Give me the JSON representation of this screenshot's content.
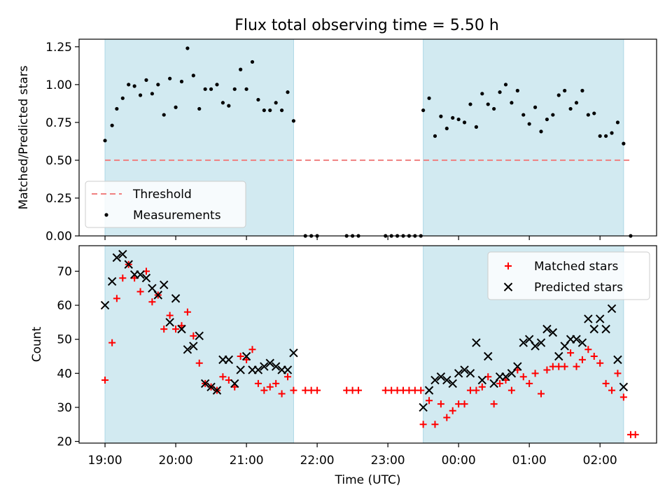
{
  "title": "Flux total observing time = 5.50 h",
  "xlabel": "Time (UTC)",
  "colors": {
    "shade": "#add8e6",
    "threshold": "#f08080",
    "measurement": "#000000",
    "matched": "#ff0000",
    "predicted": "#000000"
  },
  "chart_data": [
    {
      "type": "scatter",
      "panel": "top",
      "title": "Flux total observing time = 5.50 h",
      "xlabel": "",
      "ylabel": "Matched/Predicted stars",
      "x_axis": {
        "min": "18:38",
        "max": "02:48",
        "ticks": [
          "19:00",
          "20:00",
          "21:00",
          "22:00",
          "23:00",
          "00:00",
          "01:00",
          "02:00"
        ]
      },
      "ylim": [
        0,
        1.3
      ],
      "yticks": [
        "0.00",
        "0.25",
        "0.50",
        "0.75",
        "1.00",
        "1.25"
      ],
      "observing_windows": [
        [
          "19:00",
          "21:40"
        ],
        [
          "23:30",
          "02:20"
        ]
      ],
      "threshold": {
        "name": "Threshold",
        "value": 0.5,
        "x_range": [
          "19:00",
          "02:26"
        ],
        "style": "dashed"
      },
      "series": [
        {
          "name": "Measurements",
          "marker": "dot",
          "points": [
            [
              "19:00",
              0.63
            ],
            [
              "19:06",
              0.73
            ],
            [
              "19:10",
              0.84
            ],
            [
              "19:15",
              0.91
            ],
            [
              "19:20",
              1.0
            ],
            [
              "19:25",
              0.99
            ],
            [
              "19:30",
              0.93
            ],
            [
              "19:35",
              1.03
            ],
            [
              "19:40",
              0.94
            ],
            [
              "19:45",
              1.0
            ],
            [
              "19:50",
              0.8
            ],
            [
              "19:55",
              1.04
            ],
            [
              "20:00",
              0.85
            ],
            [
              "20:05",
              1.02
            ],
            [
              "20:10",
              1.24
            ],
            [
              "20:15",
              1.06
            ],
            [
              "20:20",
              0.84
            ],
            [
              "20:25",
              0.97
            ],
            [
              "20:30",
              0.97
            ],
            [
              "20:35",
              1.0
            ],
            [
              "20:40",
              0.88
            ],
            [
              "20:45",
              0.86
            ],
            [
              "20:50",
              0.97
            ],
            [
              "20:55",
              1.1
            ],
            [
              "21:00",
              0.97
            ],
            [
              "21:05",
              1.15
            ],
            [
              "21:10",
              0.9
            ],
            [
              "21:15",
              0.83
            ],
            [
              "21:20",
              0.83
            ],
            [
              "21:25",
              0.88
            ],
            [
              "21:30",
              0.83
            ],
            [
              "21:35",
              0.95
            ],
            [
              "21:40",
              0.76
            ],
            [
              "21:50",
              0.0
            ],
            [
              "21:55",
              0.0
            ],
            [
              "22:00",
              0.0
            ],
            [
              "22:25",
              0.0
            ],
            [
              "22:30",
              0.0
            ],
            [
              "22:35",
              0.0
            ],
            [
              "22:58",
              0.0
            ],
            [
              "23:03",
              0.0
            ],
            [
              "23:08",
              0.0
            ],
            [
              "23:13",
              0.0
            ],
            [
              "23:18",
              0.0
            ],
            [
              "23:23",
              0.0
            ],
            [
              "23:28",
              0.0
            ],
            [
              "23:30",
              0.83
            ],
            [
              "23:35",
              0.91
            ],
            [
              "23:40",
              0.66
            ],
            [
              "23:45",
              0.79
            ],
            [
              "23:50",
              0.71
            ],
            [
              "23:55",
              0.78
            ],
            [
              "00:00",
              0.77
            ],
            [
              "00:05",
              0.75
            ],
            [
              "00:10",
              0.87
            ],
            [
              "00:15",
              0.72
            ],
            [
              "00:20",
              0.94
            ],
            [
              "00:25",
              0.87
            ],
            [
              "00:30",
              0.84
            ],
            [
              "00:35",
              0.95
            ],
            [
              "00:40",
              1.0
            ],
            [
              "00:45",
              0.88
            ],
            [
              "00:50",
              0.96
            ],
            [
              "00:55",
              0.8
            ],
            [
              "01:00",
              0.74
            ],
            [
              "01:05",
              0.85
            ],
            [
              "01:10",
              0.69
            ],
            [
              "01:15",
              0.77
            ],
            [
              "01:20",
              0.8
            ],
            [
              "01:25",
              0.93
            ],
            [
              "01:30",
              0.96
            ],
            [
              "01:35",
              0.84
            ],
            [
              "01:40",
              0.88
            ],
            [
              "01:45",
              0.96
            ],
            [
              "01:50",
              0.8
            ],
            [
              "01:55",
              0.81
            ],
            [
              "02:00",
              0.66
            ],
            [
              "02:05",
              0.66
            ],
            [
              "02:10",
              0.68
            ],
            [
              "02:15",
              0.75
            ],
            [
              "02:20",
              0.61
            ],
            [
              "02:26",
              0.0
            ]
          ]
        }
      ],
      "legend": {
        "position": "bottom-left",
        "entries": [
          "Threshold",
          "Measurements"
        ]
      }
    },
    {
      "type": "scatter",
      "panel": "bottom",
      "xlabel": "Time (UTC)",
      "ylabel": "Count",
      "x_axis": {
        "min": "18:38",
        "max": "02:48",
        "ticks": [
          "19:00",
          "20:00",
          "21:00",
          "22:00",
          "23:00",
          "00:00",
          "01:00",
          "02:00"
        ]
      },
      "ylim": [
        19.5,
        77.5
      ],
      "yticks": [
        "20",
        "30",
        "40",
        "50",
        "60",
        "70"
      ],
      "observing_windows": [
        [
          "19:00",
          "21:40"
        ],
        [
          "23:30",
          "02:20"
        ]
      ],
      "series": [
        {
          "name": "Matched stars",
          "marker": "plus",
          "points": [
            [
              "19:00",
              38
            ],
            [
              "19:06",
              49
            ],
            [
              "19:10",
              62
            ],
            [
              "19:15",
              68
            ],
            [
              "19:20",
              72
            ],
            [
              "19:25",
              68
            ],
            [
              "19:30",
              64
            ],
            [
              "19:35",
              70
            ],
            [
              "19:40",
              61
            ],
            [
              "19:45",
              63
            ],
            [
              "19:50",
              53
            ],
            [
              "19:55",
              57
            ],
            [
              "20:00",
              53
            ],
            [
              "20:05",
              54
            ],
            [
              "20:10",
              58
            ],
            [
              "20:15",
              51
            ],
            [
              "20:20",
              43
            ],
            [
              "20:25",
              37
            ],
            [
              "20:30",
              36
            ],
            [
              "20:35",
              35
            ],
            [
              "20:40",
              39
            ],
            [
              "20:45",
              38
            ],
            [
              "20:50",
              36
            ],
            [
              "20:55",
              45
            ],
            [
              "21:00",
              44
            ],
            [
              "21:05",
              47
            ],
            [
              "21:10",
              37
            ],
            [
              "21:15",
              35
            ],
            [
              "21:20",
              36
            ],
            [
              "21:25",
              37
            ],
            [
              "21:30",
              34
            ],
            [
              "21:35",
              39
            ],
            [
              "21:40",
              35
            ],
            [
              "21:50",
              35
            ],
            [
              "21:55",
              35
            ],
            [
              "22:00",
              35
            ],
            [
              "22:25",
              35
            ],
            [
              "22:30",
              35
            ],
            [
              "22:35",
              35
            ],
            [
              "22:58",
              35
            ],
            [
              "23:03",
              35
            ],
            [
              "23:08",
              35
            ],
            [
              "23:13",
              35
            ],
            [
              "23:18",
              35
            ],
            [
              "23:23",
              35
            ],
            [
              "23:28",
              35
            ],
            [
              "23:30",
              25
            ],
            [
              "23:35",
              32
            ],
            [
              "23:40",
              25
            ],
            [
              "23:45",
              31
            ],
            [
              "23:50",
              27
            ],
            [
              "23:55",
              29
            ],
            [
              "00:00",
              31
            ],
            [
              "00:05",
              31
            ],
            [
              "00:10",
              35
            ],
            [
              "00:15",
              35
            ],
            [
              "00:20",
              36
            ],
            [
              "00:25",
              39
            ],
            [
              "00:30",
              31
            ],
            [
              "00:35",
              37
            ],
            [
              "00:40",
              38
            ],
            [
              "00:45",
              35
            ],
            [
              "00:50",
              41
            ],
            [
              "00:55",
              39
            ],
            [
              "01:00",
              37
            ],
            [
              "01:05",
              40
            ],
            [
              "01:10",
              34
            ],
            [
              "01:15",
              41
            ],
            [
              "01:20",
              42
            ],
            [
              "01:25",
              42
            ],
            [
              "01:30",
              42
            ],
            [
              "01:35",
              46
            ],
            [
              "01:40",
              42
            ],
            [
              "01:45",
              44
            ],
            [
              "01:50",
              47
            ],
            [
              "01:55",
              45
            ],
            [
              "02:00",
              43
            ],
            [
              "02:05",
              37
            ],
            [
              "02:10",
              35
            ],
            [
              "02:15",
              40
            ],
            [
              "02:20",
              33
            ],
            [
              "02:26",
              22
            ],
            [
              "02:30",
              22
            ]
          ]
        },
        {
          "name": "Predicted stars",
          "marker": "x",
          "points": [
            [
              "19:00",
              60
            ],
            [
              "19:06",
              67
            ],
            [
              "19:10",
              74
            ],
            [
              "19:15",
              75
            ],
            [
              "19:20",
              72
            ],
            [
              "19:25",
              69
            ],
            [
              "19:30",
              69
            ],
            [
              "19:35",
              68
            ],
            [
              "19:40",
              65
            ],
            [
              "19:45",
              63
            ],
            [
              "19:50",
              66
            ],
            [
              "19:55",
              55
            ],
            [
              "20:00",
              62
            ],
            [
              "20:05",
              53
            ],
            [
              "20:10",
              47
            ],
            [
              "20:15",
              48
            ],
            [
              "20:20",
              51
            ],
            [
              "20:25",
              37
            ],
            [
              "20:30",
              36
            ],
            [
              "20:35",
              35
            ],
            [
              "20:40",
              44
            ],
            [
              "20:45",
              44
            ],
            [
              "20:50",
              37
            ],
            [
              "20:55",
              41
            ],
            [
              "21:00",
              45
            ],
            [
              "21:05",
              41
            ],
            [
              "21:10",
              41
            ],
            [
              "21:15",
              42
            ],
            [
              "21:20",
              43
            ],
            [
              "21:25",
              42
            ],
            [
              "21:30",
              41
            ],
            [
              "21:35",
              41
            ],
            [
              "21:40",
              46
            ],
            [
              "23:30",
              30
            ],
            [
              "23:35",
              35
            ],
            [
              "23:40",
              38
            ],
            [
              "23:45",
              39
            ],
            [
              "23:50",
              38
            ],
            [
              "23:55",
              37
            ],
            [
              "00:00",
              40
            ],
            [
              "00:05",
              41
            ],
            [
              "00:10",
              40
            ],
            [
              "00:15",
              49
            ],
            [
              "00:20",
              38
            ],
            [
              "00:25",
              45
            ],
            [
              "00:30",
              37
            ],
            [
              "00:35",
              39
            ],
            [
              "00:40",
              39
            ],
            [
              "00:45",
              40
            ],
            [
              "00:50",
              42
            ],
            [
              "00:55",
              49
            ],
            [
              "01:00",
              50
            ],
            [
              "01:05",
              48
            ],
            [
              "01:10",
              49
            ],
            [
              "01:15",
              53
            ],
            [
              "01:20",
              52
            ],
            [
              "01:25",
              45
            ],
            [
              "01:30",
              48
            ],
            [
              "01:35",
              50
            ],
            [
              "01:40",
              50
            ],
            [
              "01:45",
              49
            ],
            [
              "01:50",
              56
            ],
            [
              "01:55",
              53
            ],
            [
              "02:00",
              56
            ],
            [
              "02:05",
              53
            ],
            [
              "02:10",
              59
            ],
            [
              "02:15",
              44
            ],
            [
              "02:20",
              36
            ]
          ]
        }
      ],
      "legend": {
        "position": "top-right",
        "entries": [
          "Matched stars",
          "Predicted stars"
        ]
      }
    }
  ]
}
